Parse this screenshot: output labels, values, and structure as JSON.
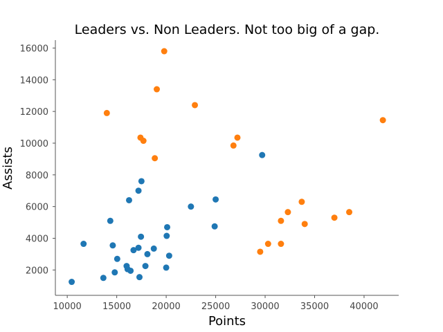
{
  "chart_data": {
    "type": "scatter",
    "title": "Leaders vs. Non Leaders. Not too big of a gap.",
    "xlabel": "Points",
    "ylabel": "Assists",
    "xlim": [
      8800,
      43500
    ],
    "ylim": [
      400,
      16500
    ],
    "xticks": [
      10000,
      15000,
      20000,
      25000,
      30000,
      35000,
      40000
    ],
    "yticks": [
      2000,
      4000,
      6000,
      8000,
      10000,
      12000,
      14000,
      16000
    ],
    "grid": false,
    "legend": "none",
    "series": [
      {
        "color": "#1f77b4",
        "points": [
          [
            10450,
            1250
          ],
          [
            11650,
            3650
          ],
          [
            13650,
            1500
          ],
          [
            14350,
            5100
          ],
          [
            14600,
            3550
          ],
          [
            14800,
            1850
          ],
          [
            15050,
            2700
          ],
          [
            16000,
            2250
          ],
          [
            16100,
            2050
          ],
          [
            16250,
            6400
          ],
          [
            16400,
            1950
          ],
          [
            16700,
            3250
          ],
          [
            17200,
            3400
          ],
          [
            17200,
            7000
          ],
          [
            17300,
            1550
          ],
          [
            17450,
            4100
          ],
          [
            17500,
            7600
          ],
          [
            17900,
            2250
          ],
          [
            18100,
            3000
          ],
          [
            18750,
            3350
          ],
          [
            20000,
            2150
          ],
          [
            20050,
            4150
          ],
          [
            20100,
            4700
          ],
          [
            20300,
            2900
          ],
          [
            22500,
            6000
          ],
          [
            24900,
            4750
          ],
          [
            25000,
            6450
          ],
          [
            29700,
            9250
          ]
        ]
      },
      {
        "color": "#ff7f0e",
        "points": [
          [
            14000,
            11900
          ],
          [
            17400,
            10350
          ],
          [
            17700,
            10150
          ],
          [
            18850,
            9050
          ],
          [
            19050,
            13400
          ],
          [
            19800,
            15800
          ],
          [
            22900,
            12400
          ],
          [
            26800,
            9850
          ],
          [
            27200,
            10350
          ],
          [
            29500,
            3150
          ],
          [
            30300,
            3650
          ],
          [
            31600,
            3650
          ],
          [
            31600,
            5100
          ],
          [
            32300,
            5650
          ],
          [
            33700,
            6300
          ],
          [
            34000,
            4900
          ],
          [
            37000,
            5300
          ],
          [
            38500,
            5650
          ],
          [
            41900,
            11450
          ]
        ]
      }
    ]
  }
}
